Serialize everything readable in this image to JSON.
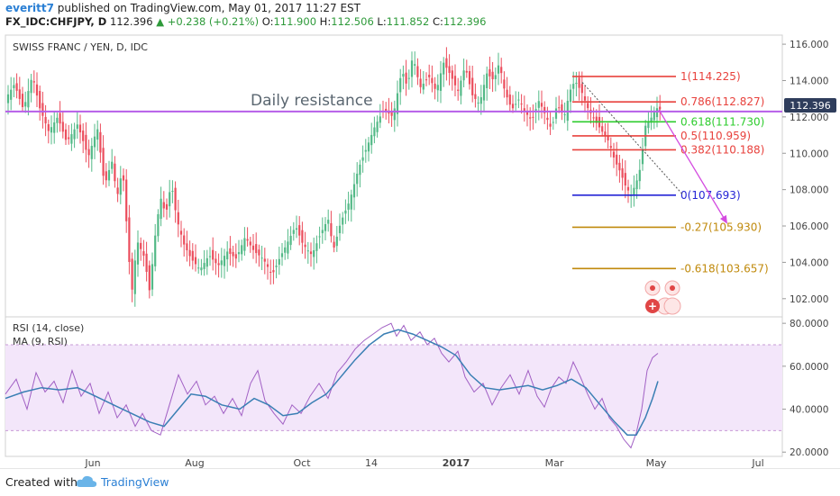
{
  "header": {
    "author": "everitt7",
    "published_text": "published on TradingView.com, May 01, 2017 11:27 EST",
    "symbol": "FX_IDC:CHFJPY, D",
    "last": "112.396",
    "change": "+0.238 (+0.21%)",
    "o_label": "O:",
    "o": "111.900",
    "h_label": "H:",
    "h": "112.506",
    "l_label": "L:",
    "l": "111.852",
    "c_label": "C:",
    "c": "112.396"
  },
  "footer": {
    "created_with": "Created with",
    "brand": "TradingView"
  },
  "colors": {
    "up": "#53b987",
    "down": "#eb4d5c",
    "resistance": "#b65ee8",
    "fib_red": "#e8423d",
    "fib_green": "#2ecc2e",
    "fib_blue": "#2525d6",
    "fib_ext": "#c08a0c",
    "rsi": "#a160c4",
    "rsi_ma": "#3a7fb4",
    "band": "#f3e6fa"
  },
  "chart_data": [
    {
      "type": "candlestick",
      "title": "SWISS FRANC / YEN, D, IDC",
      "y_range": [
        101.0,
        116.5
      ],
      "y_ticks": [
        102.0,
        104.0,
        106.0,
        108.0,
        110.0,
        112.0,
        114.0,
        116.0
      ],
      "y_tick_labels": [
        "102.000",
        "104.000",
        "106.000",
        "108.000",
        "110.000",
        "112.000",
        "114.000",
        "116.000"
      ],
      "x_labels": [
        "Jun",
        "Aug",
        "Oct",
        "14",
        "2017",
        "Mar",
        "May",
        "Jul"
      ],
      "last_price_label": "112.396",
      "resistance": {
        "label": "Daily resistance",
        "value": 112.3
      },
      "fib_levels": [
        {
          "ratio": "1",
          "label": "1(114.225)",
          "value": 114.225,
          "color": "fib_red"
        },
        {
          "ratio": "0.786",
          "label": "0.786(112.827)",
          "value": 112.827,
          "color": "fib_red"
        },
        {
          "ratio": "0.618",
          "label": "0.618(111.730)",
          "value": 111.73,
          "color": "fib_green"
        },
        {
          "ratio": "0.5",
          "label": "0.5(110.959)",
          "value": 110.959,
          "color": "fib_red"
        },
        {
          "ratio": "0.382",
          "label": "0.382(110.188)",
          "value": 110.188,
          "color": "fib_red"
        },
        {
          "ratio": "0",
          "label": "0(107.693)",
          "value": 107.693,
          "color": "fib_blue"
        },
        {
          "ratio": "-0.27",
          "label": "-0.27(105.930)",
          "value": 105.93,
          "color": "fib_ext"
        },
        {
          "ratio": "-0.618",
          "label": "-0.618(103.657)",
          "value": 103.657,
          "color": "fib_ext"
        }
      ],
      "path": [
        [
          0,
          113.0
        ],
        [
          10,
          113.8
        ],
        [
          20,
          112.4
        ],
        [
          30,
          114.3
        ],
        [
          38,
          112.5
        ],
        [
          48,
          111.2
        ],
        [
          58,
          112.0
        ],
        [
          68,
          110.6
        ],
        [
          80,
          111.6
        ],
        [
          92,
          109.8
        ],
        [
          102,
          111.4
        ],
        [
          110,
          108.2
        ],
        [
          118,
          109.6
        ],
        [
          124,
          107.6
        ],
        [
          130,
          109.2
        ],
        [
          136,
          105.0
        ],
        [
          140,
          102.2
        ],
        [
          146,
          105.2
        ],
        [
          154,
          104.3
        ],
        [
          160,
          102.4
        ],
        [
          166,
          105.4
        ],
        [
          172,
          107.6
        ],
        [
          178,
          106.6
        ],
        [
          184,
          108.4
        ],
        [
          190,
          106.4
        ],
        [
          198,
          105.0
        ],
        [
          206,
          104.2
        ],
        [
          216,
          103.6
        ],
        [
          226,
          104.4
        ],
        [
          236,
          103.8
        ],
        [
          246,
          104.6
        ],
        [
          256,
          104.2
        ],
        [
          266,
          105.4
        ],
        [
          276,
          104.6
        ],
        [
          286,
          104.2
        ],
        [
          296,
          103.3
        ],
        [
          304,
          104.2
        ],
        [
          314,
          105.2
        ],
        [
          322,
          106.0
        ],
        [
          330,
          105.0
        ],
        [
          340,
          104.4
        ],
        [
          350,
          105.6
        ],
        [
          358,
          106.4
        ],
        [
          364,
          104.7
        ],
        [
          372,
          106.2
        ],
        [
          382,
          107.4
        ],
        [
          392,
          109.2
        ],
        [
          400,
          110.2
        ],
        [
          410,
          111.5
        ],
        [
          420,
          112.4
        ],
        [
          430,
          112.0
        ],
        [
          440,
          114.6
        ],
        [
          446,
          113.6
        ],
        [
          452,
          115.4
        ],
        [
          460,
          113.6
        ],
        [
          470,
          114.2
        ],
        [
          478,
          113.4
        ],
        [
          486,
          115.0
        ],
        [
          494,
          114.3
        ],
        [
          502,
          113.4
        ],
        [
          510,
          114.8
        ],
        [
          518,
          113.2
        ],
        [
          526,
          112.7
        ],
        [
          534,
          114.4
        ],
        [
          542,
          114.0
        ],
        [
          548,
          115.0
        ],
        [
          554,
          113.4
        ],
        [
          562,
          112.4
        ],
        [
          570,
          113.0
        ],
        [
          576,
          112.3
        ],
        [
          584,
          111.8
        ],
        [
          592,
          112.9
        ],
        [
          600,
          112.0
        ],
        [
          606,
          111.3
        ],
        [
          612,
          112.7
        ],
        [
          620,
          112.0
        ],
        [
          626,
          113.4
        ],
        [
          632,
          114.0
        ],
        [
          640,
          113.3
        ],
        [
          646,
          112.5
        ],
        [
          654,
          111.8
        ],
        [
          662,
          111.2
        ],
        [
          670,
          110.6
        ],
        [
          676,
          109.6
        ],
        [
          682,
          109.0
        ],
        [
          688,
          108.2
        ],
        [
          694,
          107.7
        ],
        [
          700,
          108.4
        ],
        [
          705,
          109.3
        ],
        [
          710,
          111.5
        ],
        [
          716,
          111.9
        ],
        [
          722,
          112.5
        ],
        [
          727,
          112.4
        ]
      ],
      "projection": [
        [
          725,
          112.4
        ],
        [
          800,
          106.2
        ]
      ],
      "trendline": [
        [
          640,
          113.9
        ],
        [
          752,
          107.7
        ]
      ]
    },
    {
      "type": "line",
      "title": "RSI (14, close)",
      "series": [
        {
          "name": "RSI (14, close)",
          "color": "rsi"
        },
        {
          "name": "MA (9, RSI)",
          "color": "rsi_ma"
        }
      ],
      "y_range": [
        18,
        83
      ],
      "y_ticks": [
        20,
        40,
        60,
        80
      ],
      "y_tick_labels": [
        "20.0000",
        "40.0000",
        "60.0000",
        "80.0000"
      ],
      "band": [
        30,
        70
      ],
      "rsi_path": [
        [
          0,
          47
        ],
        [
          12,
          54
        ],
        [
          24,
          40
        ],
        [
          34,
          57
        ],
        [
          44,
          48
        ],
        [
          54,
          53
        ],
        [
          64,
          43
        ],
        [
          74,
          58
        ],
        [
          84,
          46
        ],
        [
          94,
          52
        ],
        [
          104,
          38
        ],
        [
          114,
          48
        ],
        [
          124,
          36
        ],
        [
          134,
          42
        ],
        [
          144,
          32
        ],
        [
          152,
          38
        ],
        [
          162,
          30
        ],
        [
          172,
          28
        ],
        [
          182,
          42
        ],
        [
          192,
          56
        ],
        [
          202,
          47
        ],
        [
          212,
          53
        ],
        [
          222,
          42
        ],
        [
          232,
          46
        ],
        [
          242,
          38
        ],
        [
          252,
          45
        ],
        [
          262,
          37
        ],
        [
          272,
          52
        ],
        [
          280,
          58
        ],
        [
          288,
          44
        ],
        [
          298,
          38
        ],
        [
          308,
          33
        ],
        [
          318,
          42
        ],
        [
          328,
          38
        ],
        [
          338,
          46
        ],
        [
          348,
          52
        ],
        [
          358,
          45
        ],
        [
          368,
          57
        ],
        [
          378,
          62
        ],
        [
          388,
          68
        ],
        [
          398,
          72
        ],
        [
          408,
          75
        ],
        [
          418,
          78
        ],
        [
          428,
          80
        ],
        [
          434,
          74
        ],
        [
          442,
          79
        ],
        [
          450,
          72
        ],
        [
          460,
          76
        ],
        [
          468,
          70
        ],
        [
          476,
          73
        ],
        [
          484,
          66
        ],
        [
          492,
          62
        ],
        [
          502,
          67
        ],
        [
          510,
          55
        ],
        [
          520,
          48
        ],
        [
          530,
          52
        ],
        [
          540,
          42
        ],
        [
          550,
          50
        ],
        [
          560,
          56
        ],
        [
          570,
          47
        ],
        [
          580,
          58
        ],
        [
          590,
          46
        ],
        [
          598,
          41
        ],
        [
          606,
          50
        ],
        [
          614,
          55
        ],
        [
          622,
          52
        ],
        [
          630,
          62
        ],
        [
          638,
          55
        ],
        [
          646,
          47
        ],
        [
          654,
          40
        ],
        [
          662,
          45
        ],
        [
          670,
          36
        ],
        [
          678,
          32
        ],
        [
          686,
          26
        ],
        [
          694,
          22
        ],
        [
          700,
          29
        ],
        [
          706,
          40
        ],
        [
          712,
          58
        ],
        [
          718,
          64
        ],
        [
          724,
          66
        ]
      ],
      "ma_path": [
        [
          0,
          45
        ],
        [
          20,
          48
        ],
        [
          40,
          50
        ],
        [
          60,
          49
        ],
        [
          80,
          50
        ],
        [
          100,
          46
        ],
        [
          120,
          42
        ],
        [
          140,
          38
        ],
        [
          160,
          34
        ],
        [
          176,
          32
        ],
        [
          192,
          40
        ],
        [
          206,
          47
        ],
        [
          222,
          46
        ],
        [
          240,
          42
        ],
        [
          260,
          40
        ],
        [
          276,
          45
        ],
        [
          292,
          42
        ],
        [
          308,
          37
        ],
        [
          324,
          38
        ],
        [
          340,
          43
        ],
        [
          356,
          47
        ],
        [
          372,
          55
        ],
        [
          388,
          63
        ],
        [
          404,
          70
        ],
        [
          420,
          75
        ],
        [
          436,
          77
        ],
        [
          452,
          75
        ],
        [
          468,
          72
        ],
        [
          484,
          69
        ],
        [
          500,
          65
        ],
        [
          516,
          56
        ],
        [
          532,
          50
        ],
        [
          548,
          49
        ],
        [
          564,
          50
        ],
        [
          580,
          51
        ],
        [
          596,
          49
        ],
        [
          612,
          51
        ],
        [
          628,
          54
        ],
        [
          644,
          50
        ],
        [
          660,
          42
        ],
        [
          676,
          34
        ],
        [
          690,
          28
        ],
        [
          700,
          28
        ],
        [
          710,
          36
        ],
        [
          718,
          45
        ],
        [
          724,
          53
        ]
      ]
    }
  ]
}
